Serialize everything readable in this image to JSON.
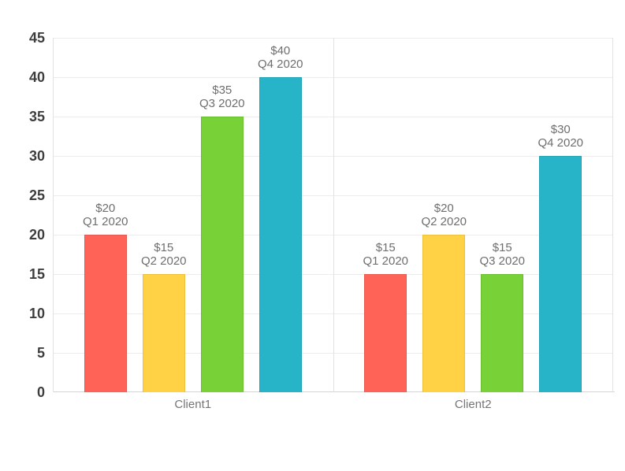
{
  "chart_data": {
    "type": "bar",
    "title": "",
    "xlabel": "",
    "ylabel": "",
    "categories": [
      "Client1",
      "Client2"
    ],
    "series": [
      {
        "name": "Q1 2020",
        "color": "#ff6358",
        "stroke": "#e45a4f",
        "values": [
          20,
          15
        ],
        "labels": [
          "$20",
          "$15"
        ]
      },
      {
        "name": "Q2 2020",
        "color": "#ffd246",
        "stroke": "#ecbf3c",
        "values": [
          15,
          20
        ],
        "labels": [
          "$15",
          "$20"
        ]
      },
      {
        "name": "Q3 2020",
        "color": "#78d237",
        "stroke": "#69bd2e",
        "values": [
          35,
          15
        ],
        "labels": [
          "$35",
          "$15"
        ]
      },
      {
        "name": "Q4 2020",
        "color": "#28b4c8",
        "stroke": "#22a2b5",
        "values": [
          40,
          30
        ],
        "labels": [
          "$40",
          "$30"
        ]
      }
    ],
    "yticks": [
      0,
      5,
      10,
      15,
      20,
      25,
      30,
      35,
      40,
      45
    ],
    "ylim": [
      0,
      45
    ],
    "grid": true,
    "legend_position": "none",
    "label_color": "#6e6e6e",
    "axis_label_color": "#3e3e3e",
    "category_label_color": "#757575"
  }
}
